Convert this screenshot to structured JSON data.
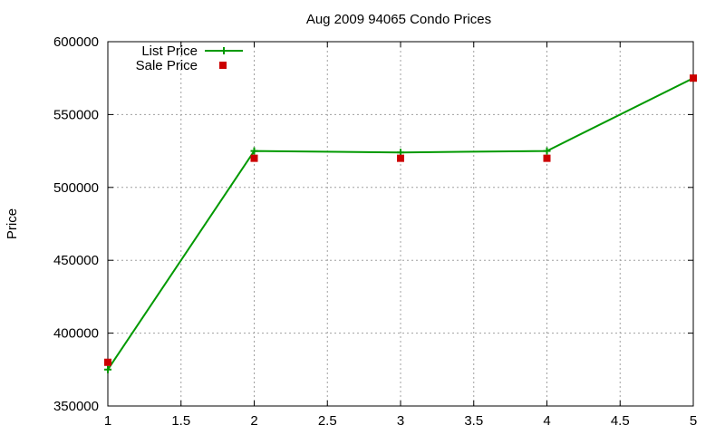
{
  "chart_data": {
    "type": "line",
    "title": "Aug 2009 94065 Condo Prices",
    "xlabel": "",
    "ylabel": "Price",
    "xlim": [
      1,
      5
    ],
    "ylim": [
      350000,
      600000
    ],
    "xticks": [
      "1",
      "1.5",
      "2",
      "2.5",
      "3",
      "3.5",
      "4",
      "4.5",
      "5"
    ],
    "yticks": [
      "350000",
      "400000",
      "450000",
      "500000",
      "550000",
      "600000"
    ],
    "grid": true,
    "legend_position": "top-left",
    "series": [
      {
        "name": "List Price",
        "style": "line-plus",
        "color": "#009900",
        "x": [
          1,
          2,
          3,
          4,
          5
        ],
        "y": [
          375000,
          525000,
          524000,
          525000,
          575000
        ]
      },
      {
        "name": "Sale Price",
        "style": "square-points",
        "color": "#cc0000",
        "x": [
          1,
          2,
          3,
          4,
          5
        ],
        "y": [
          380000,
          520000,
          520000,
          520000,
          575000
        ]
      }
    ]
  }
}
